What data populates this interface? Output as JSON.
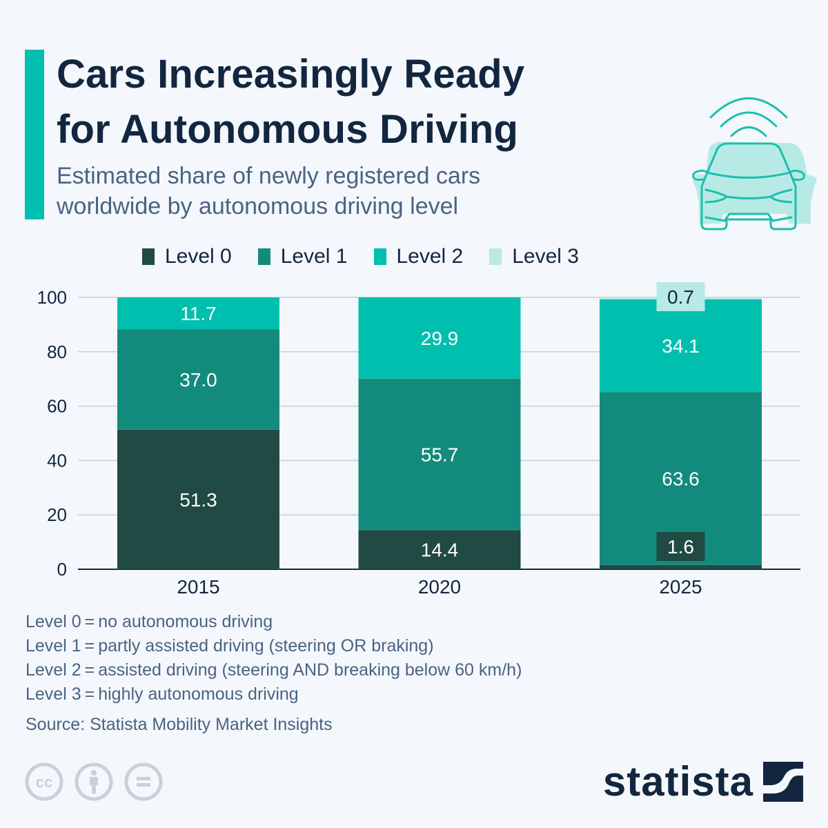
{
  "header": {
    "title": "Cars Increasingly Ready\nfor Autonomous Driving",
    "subtitle": "Estimated share of newly registered cars\nworldwide by autonomous driving level",
    "illustration": "connected-car-icon"
  },
  "colors": {
    "accent": "#00bfae",
    "level0": "#214a44",
    "level1": "#138b7c",
    "level2": "#00bfae",
    "level3": "#b8eae5",
    "text_dark": "#12263f",
    "text_muted": "#4a6382",
    "grid": "#c5ced8"
  },
  "chart_data": {
    "type": "bar",
    "stacked": true,
    "title": "Cars Increasingly Ready for Autonomous Driving",
    "subtitle": "Estimated share of newly registered cars worldwide by autonomous driving level",
    "categories": [
      "2015",
      "2020",
      "2025"
    ],
    "series": [
      {
        "name": "Level 0",
        "values": [
          51.3,
          14.4,
          1.6
        ]
      },
      {
        "name": "Level 1",
        "values": [
          37.0,
          55.7,
          63.6
        ]
      },
      {
        "name": "Level 2",
        "values": [
          11.7,
          29.9,
          34.1
        ]
      },
      {
        "name": "Level 3",
        "values": [
          null,
          null,
          0.7
        ]
      }
    ],
    "xlabel": "",
    "ylabel": "",
    "ylim": [
      0,
      100
    ],
    "yticks": [
      0,
      20,
      40,
      60,
      80,
      100
    ],
    "grid": true,
    "legend": "top-center",
    "data_labels": true
  },
  "legend": [
    {
      "label": "Level 0",
      "color_key": "level0"
    },
    {
      "label": "Level 1",
      "color_key": "level1"
    },
    {
      "label": "Level 2",
      "color_key": "level2"
    },
    {
      "label": "Level 3",
      "color_key": "level3"
    }
  ],
  "notes": [
    "Level 0 = no autonomous driving",
    "Level 1 = partly assisted driving (steering OR braking)",
    "Level 2 = assisted driving (steering AND breaking below 60 km/h)",
    "Level 3 = highly autonomous driving"
  ],
  "source": "Source: Statista Mobility Market Insights",
  "footer": {
    "license_icons": [
      "creative-commons-icon",
      "attribution-icon",
      "no-derivatives-icon"
    ],
    "brand": "statista"
  }
}
